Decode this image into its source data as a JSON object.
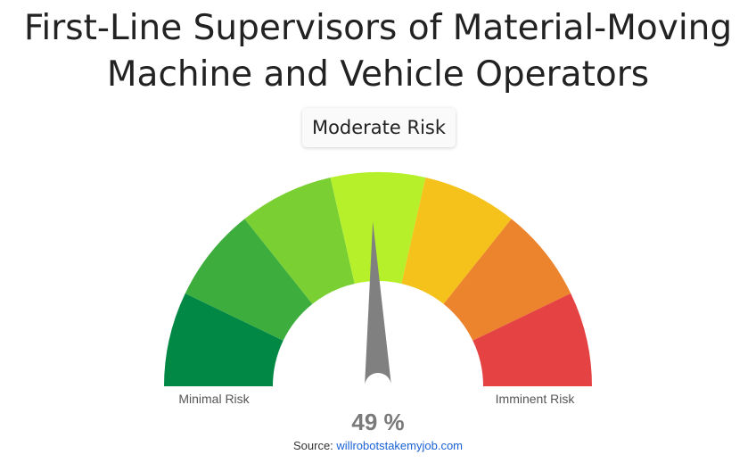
{
  "title_line1": "First-Line Supervisors of Material-Moving",
  "title_line2": "Machine and Vehicle Operators",
  "risk_label": "Moderate Risk",
  "chart_data": {
    "type": "gauge",
    "value": 49,
    "value_label": "49 %",
    "min": 0,
    "max": 100,
    "min_label": "Minimal Risk",
    "max_label": "Imminent Risk",
    "bands": [
      {
        "color": "#008844"
      },
      {
        "color": "#3dae3d"
      },
      {
        "color": "#7ad033"
      },
      {
        "color": "#b5f02b"
      },
      {
        "color": "#f5c21b"
      },
      {
        "color": "#ec832d"
      },
      {
        "color": "#e54343"
      }
    ],
    "needle_color": "#808080"
  },
  "source": {
    "prefix": "Source: ",
    "link_text": "willrobotstakemyjob.com"
  }
}
